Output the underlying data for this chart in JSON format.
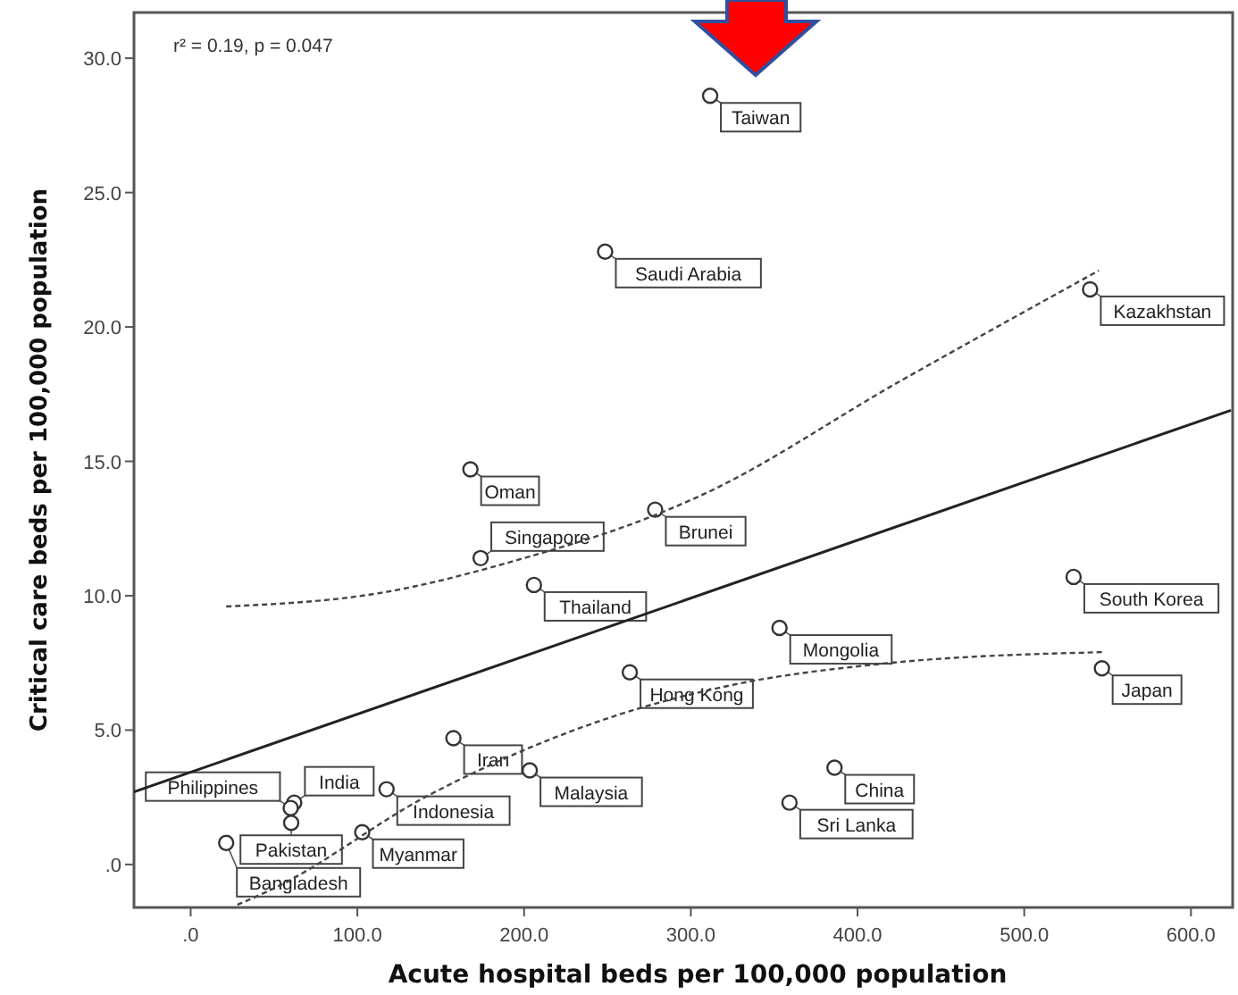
{
  "chart_data": {
    "type": "scatter",
    "xlabel": "Acute hospital beds per 100,000 population",
    "ylabel": "Critical care beds per 100,000 population",
    "xlim": [
      -34,
      625
    ],
    "ylim": [
      -1.6,
      31.7
    ],
    "xticks": [
      {
        "value": 0,
        "label": ".0"
      },
      {
        "value": 100,
        "label": "100.0"
      },
      {
        "value": 200,
        "label": "200.0"
      },
      {
        "value": 300,
        "label": "300.0"
      },
      {
        "value": 400,
        "label": "400.0"
      },
      {
        "value": 500,
        "label": "500.0"
      },
      {
        "value": 600,
        "label": "600.0"
      }
    ],
    "yticks": [
      {
        "value": 0,
        "label": ".0"
      },
      {
        "value": 5,
        "label": "5.0"
      },
      {
        "value": 10,
        "label": "10.0"
      },
      {
        "value": 15,
        "label": "15.0"
      },
      {
        "value": 20,
        "label": "20.0"
      },
      {
        "value": 25,
        "label": "25.0"
      },
      {
        "value": 30,
        "label": "30.0"
      }
    ],
    "marker": "circle",
    "series": [
      {
        "color": "#333333",
        "x": [
          311.6,
          248.6,
          539.5,
          167.8,
          173.9,
          205.9,
          278.6,
          529.6,
          353.2,
          546.6,
          263.4,
          386.2,
          359.2,
          203.4,
          157.6,
          62.1,
          60,
          60.3,
          117.5,
          102.9,
          21.3
        ],
        "values": [
          28.6,
          22.8,
          21.4,
          14.7,
          11.4,
          10.4,
          13.2,
          10.7,
          8.8,
          7.3,
          7.15,
          3.6,
          2.3,
          3.5,
          4.7,
          2.3,
          2.1,
          1.55,
          2.8,
          1.2,
          0.8
        ]
      },
      {
        "type": "line",
        "color": "#222222",
        "marker": "none",
        "line_style": "solid",
        "x": [
          -34,
          624
        ],
        "values": [
          2.7,
          16.9
        ]
      },
      {
        "type": "line",
        "color": "#444444",
        "marker": "none",
        "line_style": "dashed",
        "x": [
          21.3,
          113.5,
          200,
          278.6,
          305,
          426,
          544.8
        ],
        "values": [
          9.6,
          10.1,
          11.4,
          13.0,
          13.7,
          18.0,
          22.1
        ]
      },
      {
        "type": "line",
        "color": "#444444",
        "marker": "none",
        "line_style": "dashed",
        "x": [
          28,
          49.6,
          142,
          255.6,
          326.5,
          411.7,
          546.6
        ],
        "values": [
          -1.5,
          -0.9,
          2.55,
          5.55,
          6.7,
          7.45,
          7.9
        ]
      }
    ],
    "annotations": [
      "r² = 0.19, p = 0.047",
      {
        "text": "Taiwan",
        "x": 311.6,
        "y": 28.6
      },
      {
        "text": "Saudi Arabia",
        "x": 248.6,
        "y": 22.8
      },
      {
        "text": "Kazakhstan",
        "x": 539.5,
        "y": 21.4
      },
      {
        "text": "Oman",
        "x": 167.8,
        "y": 14.7
      },
      {
        "text": "Singapore",
        "x": 173.9,
        "y": 11.4
      },
      {
        "text": "Thailand",
        "x": 205.9,
        "y": 10.4
      },
      {
        "text": "Brunei",
        "x": 278.6,
        "y": 13.2
      },
      {
        "text": "South Korea",
        "x": 529.6,
        "y": 10.7
      },
      {
        "text": "Mongolia",
        "x": 353.2,
        "y": 8.8
      },
      {
        "text": "Japan",
        "x": 546.6,
        "y": 7.3
      },
      {
        "text": "Hong Kong",
        "x": 263.4,
        "y": 7.15
      },
      {
        "text": "China",
        "x": 386.2,
        "y": 3.6
      },
      {
        "text": "Sri Lanka",
        "x": 359.2,
        "y": 2.3
      },
      {
        "text": "Malaysia",
        "x": 203.4,
        "y": 3.5
      },
      {
        "text": "Iran",
        "x": 157.6,
        "y": 4.7
      },
      {
        "text": "India",
        "x": 62.1,
        "y": 2.3
      },
      {
        "text": "Philippines",
        "x": 60,
        "y": 2.1
      },
      {
        "text": "Pakistan",
        "x": 60.3,
        "y": 1.55
      },
      {
        "text": "Indonesia",
        "x": 117.5,
        "y": 2.8
      },
      {
        "text": "Myanmar",
        "x": 102.9,
        "y": 1.2
      },
      {
        "text": "Bangladesh",
        "x": 21.3,
        "y": 0.8
      }
    ]
  }
}
